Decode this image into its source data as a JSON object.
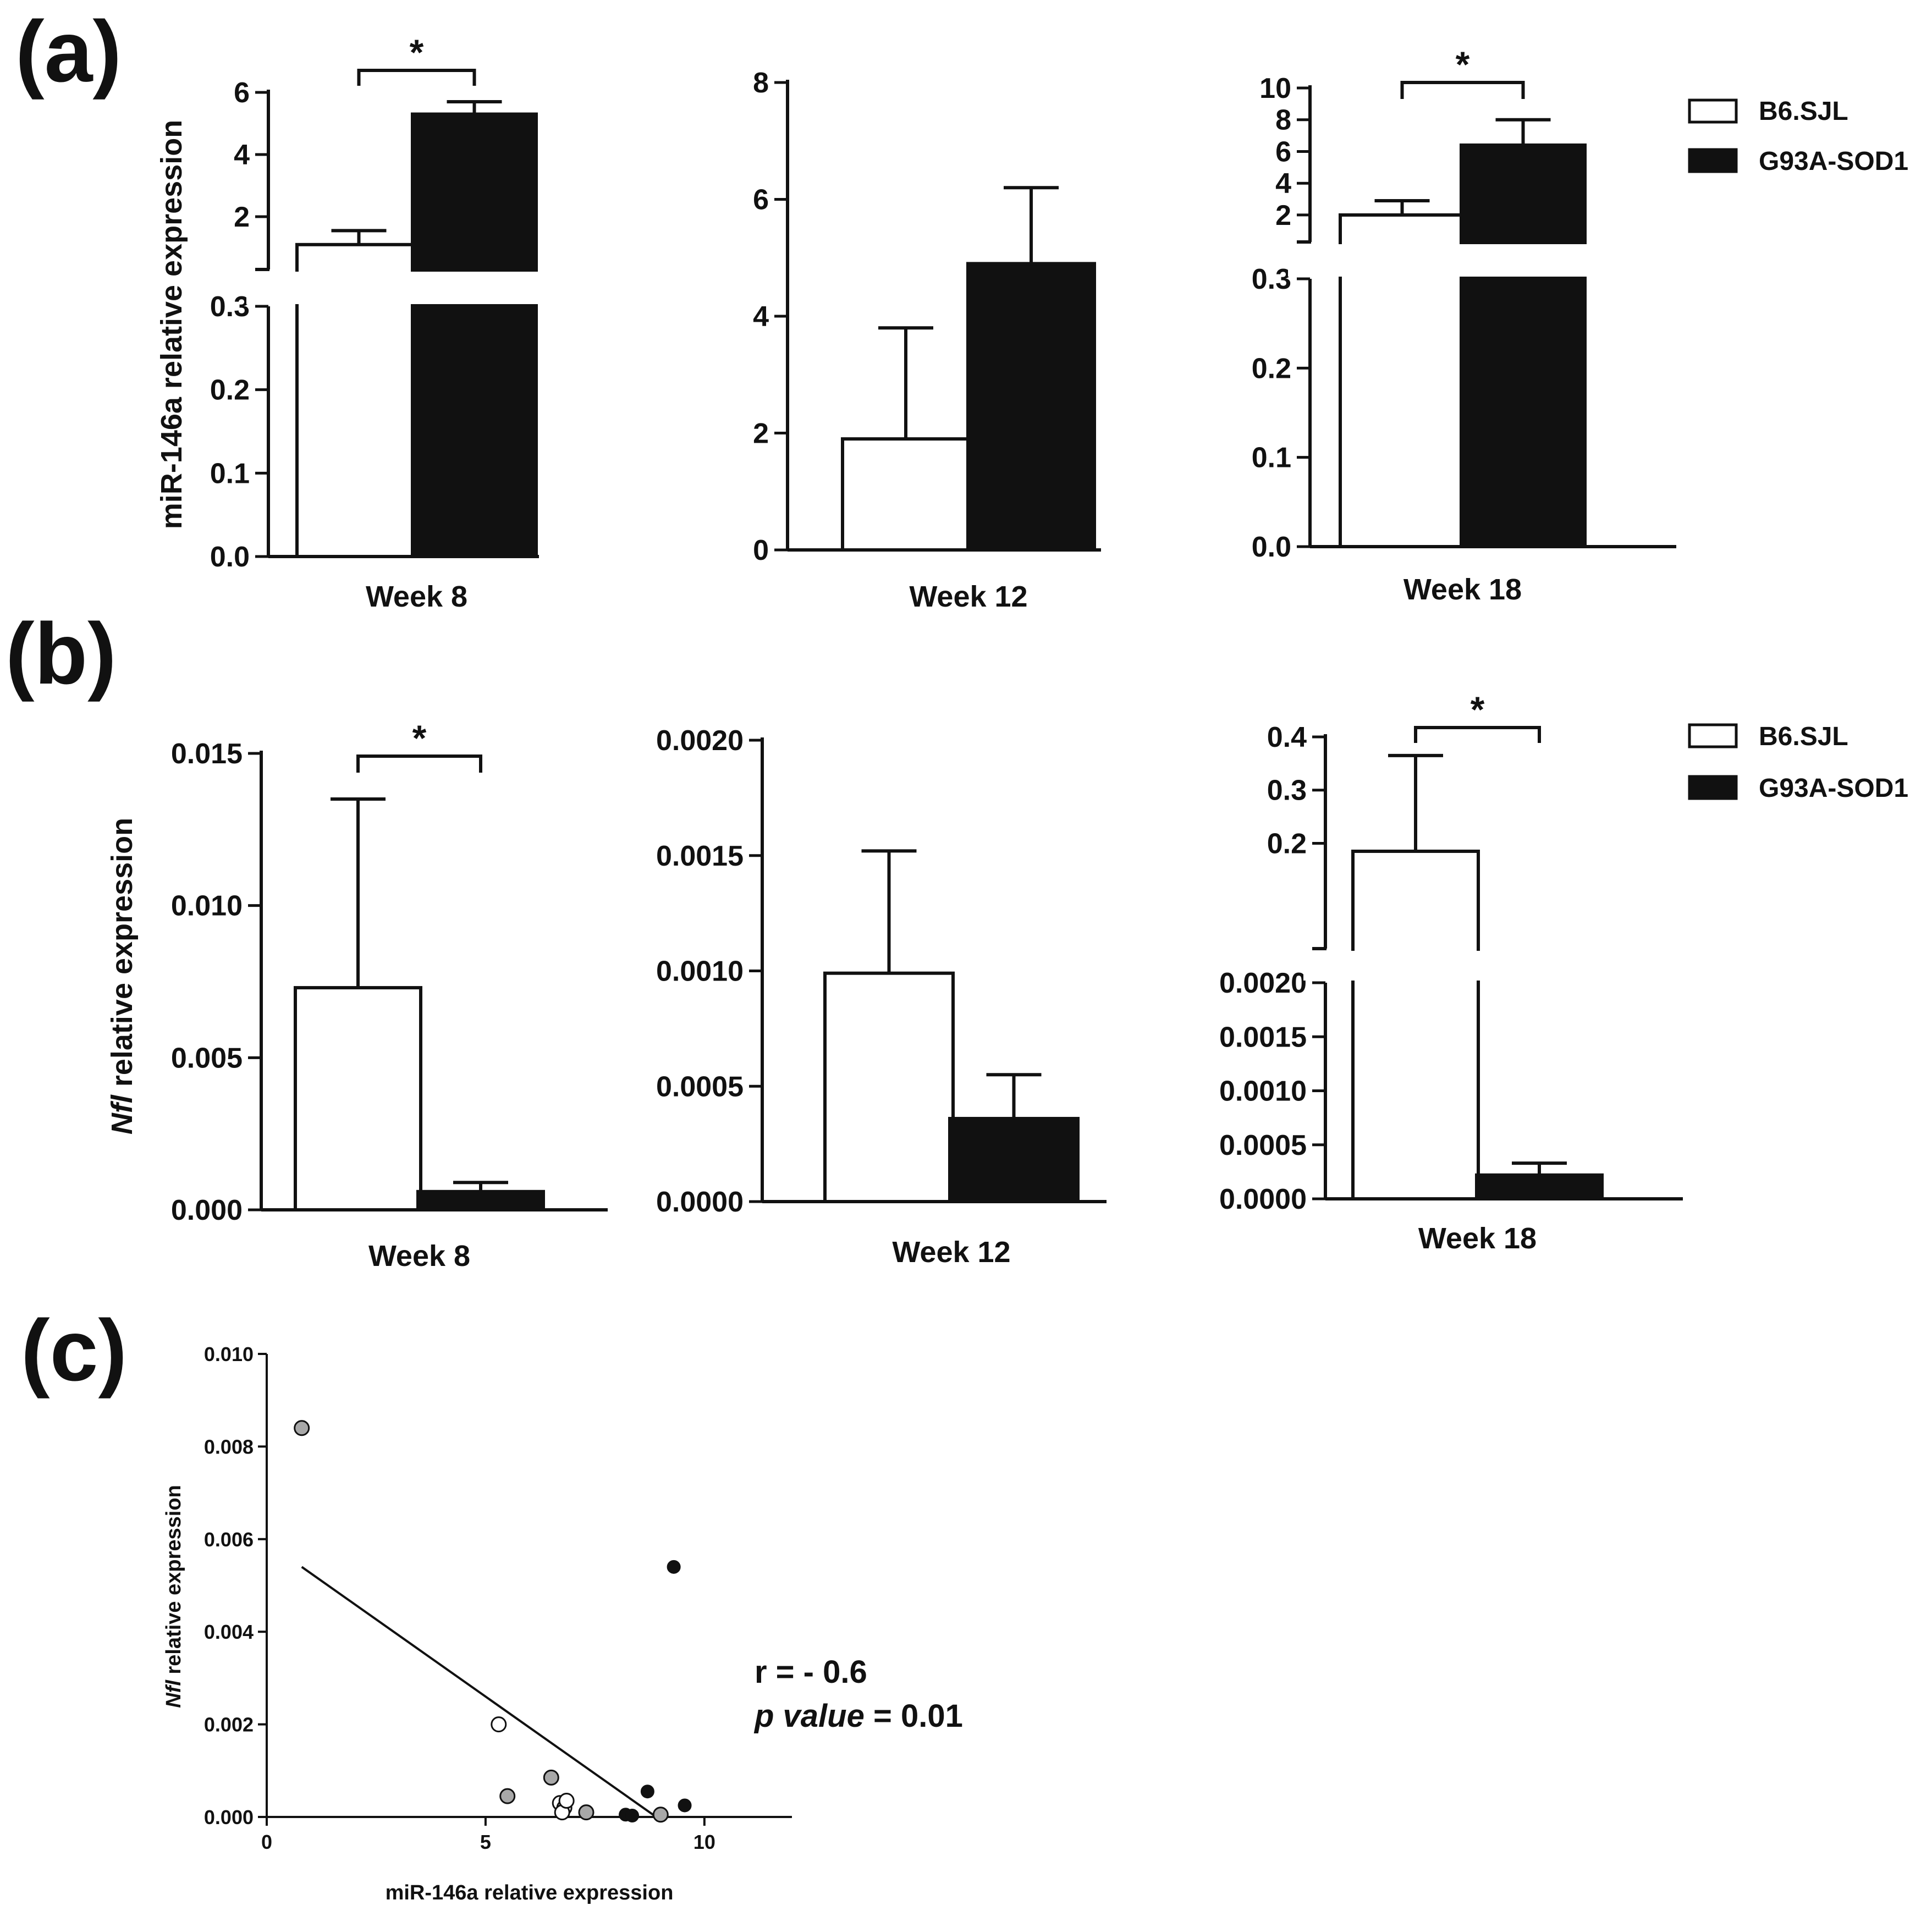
{
  "colors": {
    "control_fill": "#ffffff",
    "g93a_fill": "#111111",
    "axis": "#111111",
    "grey_point": "#a8a8a8"
  },
  "panel_labels": {
    "a": "(a)",
    "b": "(b)",
    "c": "(c)"
  },
  "legend": {
    "control": "B6.SJL",
    "g93a": "G93A-SOD1"
  },
  "significance_marker": "*",
  "chart_data": [
    {
      "id": "a-week8",
      "type": "bar",
      "panel": "(a)",
      "category": "Week 8",
      "ylabel": "miR-146a relative expression",
      "y_axis_break": true,
      "segments": [
        {
          "ylim": [
            0,
            0.3
          ],
          "ticks": [
            "0.0",
            "0.1",
            "0.2",
            "0.3"
          ]
        },
        {
          "ylim": [
            0.3,
            6
          ],
          "ticks": [
            "2",
            "4",
            "6"
          ]
        }
      ],
      "series": [
        {
          "name": "B6.SJL",
          "value": 1.1,
          "error": 0.45
        },
        {
          "name": "G93A-SOD1",
          "value": 5.3,
          "error": 0.4
        }
      ],
      "significance": "*"
    },
    {
      "id": "a-week12",
      "type": "bar",
      "panel": "(a)",
      "category": "Week 12",
      "ylabel": "",
      "y_axis_break": false,
      "segments": [
        {
          "ylim": [
            0,
            8
          ],
          "ticks": [
            "0",
            "2",
            "4",
            "6",
            "8"
          ]
        }
      ],
      "series": [
        {
          "name": "B6.SJL",
          "value": 1.9,
          "error": 1.9
        },
        {
          "name": "G93A-SOD1",
          "value": 4.9,
          "error": 1.3
        }
      ],
      "significance": ""
    },
    {
      "id": "a-week18",
      "type": "bar",
      "panel": "(a)",
      "category": "Week 18",
      "ylabel": "",
      "y_axis_break": true,
      "segments": [
        {
          "ylim": [
            0,
            0.3
          ],
          "ticks": [
            "0.0",
            "0.1",
            "0.2",
            "0.3"
          ]
        },
        {
          "ylim": [
            0.3,
            10
          ],
          "ticks": [
            "2",
            "4",
            "6",
            "8",
            "10"
          ]
        }
      ],
      "series": [
        {
          "name": "B6.SJL",
          "value": 2.0,
          "error": 0.9
        },
        {
          "name": "G93A-SOD1",
          "value": 6.4,
          "error": 1.6
        }
      ],
      "significance": "*"
    },
    {
      "id": "b-week8",
      "type": "bar",
      "panel": "(b)",
      "category": "Week 8",
      "ylabel": "Nfl relative expression",
      "y_axis_break": false,
      "segments": [
        {
          "ylim": [
            0,
            0.015
          ],
          "ticks": [
            "0.000",
            "0.005",
            "0.010",
            "0.015"
          ]
        }
      ],
      "series": [
        {
          "name": "B6.SJL",
          "value": 0.0073,
          "error": 0.0062
        },
        {
          "name": "G93A-SOD1",
          "value": 0.0006,
          "error": 0.0003
        }
      ],
      "significance": "*"
    },
    {
      "id": "b-week12",
      "type": "bar",
      "panel": "(b)",
      "category": "Week 12",
      "ylabel": "",
      "y_axis_break": false,
      "segments": [
        {
          "ylim": [
            0,
            0.002
          ],
          "ticks": [
            "0.0000",
            "0.0005",
            "0.0010",
            "0.0015",
            "0.0020"
          ]
        }
      ],
      "series": [
        {
          "name": "B6.SJL",
          "value": 0.00099,
          "error": 0.00053
        },
        {
          "name": "G93A-SOD1",
          "value": 0.00036,
          "error": 0.00019
        }
      ],
      "significance": ""
    },
    {
      "id": "b-week18",
      "type": "bar",
      "panel": "(b)",
      "category": "Week 18",
      "ylabel": "",
      "y_axis_break": true,
      "segments": [
        {
          "ylim": [
            0,
            0.002
          ],
          "ticks": [
            "0.0000",
            "0.0005",
            "0.0010",
            "0.0015",
            "0.0020"
          ]
        },
        {
          "ylim": [
            0.002,
            0.4
          ],
          "ticks": [
            "0.2",
            "0.3",
            "0.4"
          ]
        }
      ],
      "series": [
        {
          "name": "B6.SJL",
          "value": 0.185,
          "error": 0.18
        },
        {
          "name": "G93A-SOD1",
          "value": 0.00022,
          "error": 0.00011
        }
      ],
      "significance": "*"
    },
    {
      "id": "c-correlation",
      "type": "scatter",
      "panel": "(c)",
      "xlabel": "miR-146a relative expression",
      "ylabel": "Nfl relative expression",
      "xlim": [
        0,
        12
      ],
      "ylim": [
        0,
        0.01
      ],
      "xticks": [
        "0",
        "5",
        "10"
      ],
      "yticks": [
        "0.000",
        "0.002",
        "0.004",
        "0.006",
        "0.008",
        "0.010"
      ],
      "points": [
        {
          "x": 0.8,
          "y": 0.0084,
          "group": "grey"
        },
        {
          "x": 5.3,
          "y": 0.002,
          "group": "open"
        },
        {
          "x": 5.5,
          "y": 0.00045,
          "group": "grey"
        },
        {
          "x": 6.5,
          "y": 0.00085,
          "group": "grey"
        },
        {
          "x": 6.7,
          "y": 0.0003,
          "group": "open"
        },
        {
          "x": 6.8,
          "y": 0.0002,
          "group": "open"
        },
        {
          "x": 6.75,
          "y": 0.0001,
          "group": "open"
        },
        {
          "x": 6.85,
          "y": 0.00035,
          "group": "open"
        },
        {
          "x": 7.3,
          "y": 0.0001,
          "group": "grey"
        },
        {
          "x": 8.2,
          "y": 5e-05,
          "group": "black"
        },
        {
          "x": 8.35,
          "y": 3e-05,
          "group": "black"
        },
        {
          "x": 8.7,
          "y": 0.00055,
          "group": "black"
        },
        {
          "x": 9.0,
          "y": 5e-05,
          "group": "grey"
        },
        {
          "x": 9.3,
          "y": 0.0054,
          "group": "black"
        },
        {
          "x": 9.55,
          "y": 0.00025,
          "group": "black"
        }
      ],
      "regression_line": {
        "x": [
          0.8,
          8.9
        ],
        "y": [
          0.0054,
          0.0
        ]
      },
      "stats": {
        "r_label": "r = - 0.6",
        "p_label": "p value",
        "p_suffix": "= 0.01"
      }
    }
  ]
}
